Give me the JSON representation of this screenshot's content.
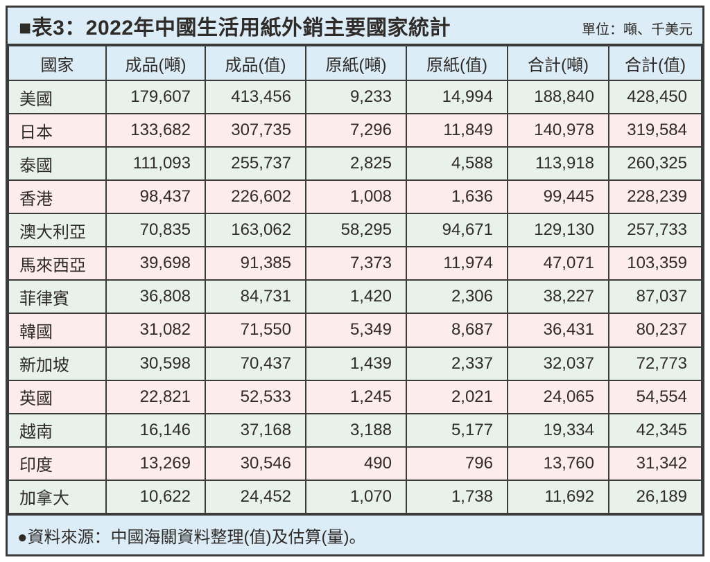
{
  "header": {
    "title": "■表3：2022年中國生活用紙外銷主要國家統計",
    "unit_label": "單位：噸、千美元"
  },
  "table": {
    "columns": [
      "國家",
      "成品(噸)",
      "成品(值)",
      "原紙(噸)",
      "原紙(值)",
      "合計(噸)",
      "合計(值)"
    ],
    "rows": [
      {
        "country": "美國",
        "values": [
          "179,607",
          "413,456",
          "9,233",
          "14,994",
          "188,840",
          "428,450"
        ]
      },
      {
        "country": "日本",
        "values": [
          "133,682",
          "307,735",
          "7,296",
          "11,849",
          "140,978",
          "319,584"
        ]
      },
      {
        "country": "泰國",
        "values": [
          "111,093",
          "255,737",
          "2,825",
          "4,588",
          "113,918",
          "260,325"
        ]
      },
      {
        "country": "香港",
        "values": [
          "98,437",
          "226,602",
          "1,008",
          "1,636",
          "99,445",
          "228,239"
        ]
      },
      {
        "country": "澳大利亞",
        "values": [
          "70,835",
          "163,062",
          "58,295",
          "94,671",
          "129,130",
          "257,733"
        ]
      },
      {
        "country": "馬來西亞",
        "values": [
          "39,698",
          "91,385",
          "7,373",
          "11,974",
          "47,071",
          "103,359"
        ]
      },
      {
        "country": "菲律賓",
        "values": [
          "36,808",
          "84,731",
          "1,420",
          "2,306",
          "38,227",
          "87,037"
        ]
      },
      {
        "country": "韓國",
        "values": [
          "31,082",
          "71,550",
          "5,349",
          "8,687",
          "36,431",
          "80,237"
        ]
      },
      {
        "country": "新加坡",
        "values": [
          "30,598",
          "70,437",
          "1,439",
          "2,337",
          "32,037",
          "72,773"
        ]
      },
      {
        "country": "英國",
        "values": [
          "22,821",
          "52,533",
          "1,245",
          "2,021",
          "24,065",
          "54,554"
        ]
      },
      {
        "country": "越南",
        "values": [
          "16,146",
          "37,168",
          "3,188",
          "5,177",
          "19,334",
          "42,345"
        ]
      },
      {
        "country": "印度",
        "values": [
          "13,269",
          "30,546",
          "490",
          "796",
          "13,760",
          "31,342"
        ]
      },
      {
        "country": "加拿大",
        "values": [
          "10,622",
          "24,452",
          "1,070",
          "1,738",
          "11,692",
          "26,189"
        ]
      }
    ]
  },
  "footer": {
    "source": "●資料來源：中國海關資料整理(值)及估算(量)。"
  },
  "colors": {
    "band_blue": "#dcedf7",
    "row_green": "#e9f2ea",
    "row_pink": "#fdecec",
    "border_dark": "#3b3b3b",
    "text": "#2f2b29"
  }
}
